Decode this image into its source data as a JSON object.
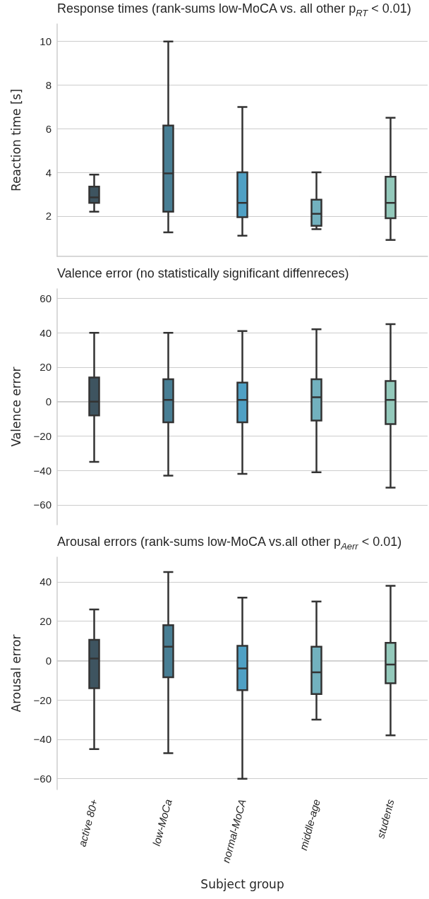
{
  "chart_data": [
    {
      "type": "box",
      "title": "Response times (rank-sums low-MoCA vs. all other p$_{RT}$ < 0.01)",
      "ylabel": "Reaction time [s]",
      "categories": [
        null,
        null,
        null,
        null,
        null
      ],
      "colors": [
        "#3e5460",
        "#487e94",
        "#4fa0c4",
        "#72b1be",
        "#93c9bb"
      ],
      "boxes": [
        {
          "low": 2.2,
          "q1": 2.6,
          "median": 2.85,
          "q3": 3.35,
          "high": 3.9
        },
        {
          "low": 1.25,
          "q1": 2.2,
          "median": 3.95,
          "q3": 6.15,
          "high": 10
        },
        {
          "low": 1.1,
          "q1": 1.95,
          "median": 2.6,
          "q3": 4,
          "high": 7
        },
        {
          "low": 1.4,
          "q1": 1.55,
          "median": 2.1,
          "q3": 2.75,
          "high": 4
        },
        {
          "low": 0.9,
          "q1": 1.9,
          "median": 2.6,
          "q3": 3.8,
          "high": 6.5
        }
      ],
      "ylim": [
        0.15,
        10.8
      ],
      "yticks": [
        2,
        4,
        6,
        8,
        10
      ],
      "grid": "y",
      "tick_labels": "y"
    },
    {
      "type": "box",
      "title": "Valence error (no statistically significant diffenreces)",
      "ylabel": "Valence error",
      "categories": [
        null,
        null,
        null,
        null,
        null
      ],
      "colors": [
        "#3e5460",
        "#487e94",
        "#4fa0c4",
        "#72b1be",
        "#93c9bb"
      ],
      "boxes": [
        {
          "low": -35,
          "q1": -8,
          "median": 0,
          "q3": 14,
          "high": 40
        },
        {
          "low": -43,
          "q1": -12,
          "median": 1,
          "q3": 13,
          "high": 40
        },
        {
          "low": -42,
          "q1": -12,
          "median": 1,
          "q3": 11,
          "high": 41
        },
        {
          "low": -41,
          "q1": -11,
          "median": 2.5,
          "q3": 13,
          "high": 42
        },
        {
          "low": -50,
          "q1": -13,
          "median": 1,
          "q3": 12,
          "high": 45
        }
      ],
      "ylim": [
        -71.5,
        65.5
      ],
      "yticks": [
        -60,
        -40,
        -20,
        0,
        20,
        40,
        60
      ],
      "grid": "y",
      "tick_labels": "y"
    },
    {
      "type": "box",
      "title": "Arousal errors (rank-sums low-MoCA vs.all other p$_{Aerr}$ < 0.01)",
      "xlabel": "Subject group",
      "ylabel": "Arousal error",
      "categories": [
        "active 80+",
        "low-MoCa",
        "normal-MoCA",
        "middle-age",
        "students"
      ],
      "colors": [
        "#3e5460",
        "#487e94",
        "#4fa0c4",
        "#72b1be",
        "#93c9bb"
      ],
      "boxes": [
        {
          "low": -45,
          "q1": -14,
          "median": 1,
          "q3": 10.5,
          "high": 26
        },
        {
          "low": -47,
          "q1": -8.5,
          "median": 7,
          "q3": 18,
          "high": 45
        },
        {
          "low": -60,
          "q1": -15,
          "median": -4,
          "q3": 7.5,
          "high": 32
        },
        {
          "low": -30,
          "q1": -17,
          "median": -6,
          "q3": 7,
          "high": 30
        },
        {
          "low": -38,
          "q1": -11.5,
          "median": -2,
          "q3": 9,
          "high": 38
        }
      ],
      "ylim": [
        -65.5,
        52.5
      ],
      "yticks": [
        -60,
        -40,
        -20,
        0,
        20,
        40
      ],
      "grid": "y"
    }
  ]
}
